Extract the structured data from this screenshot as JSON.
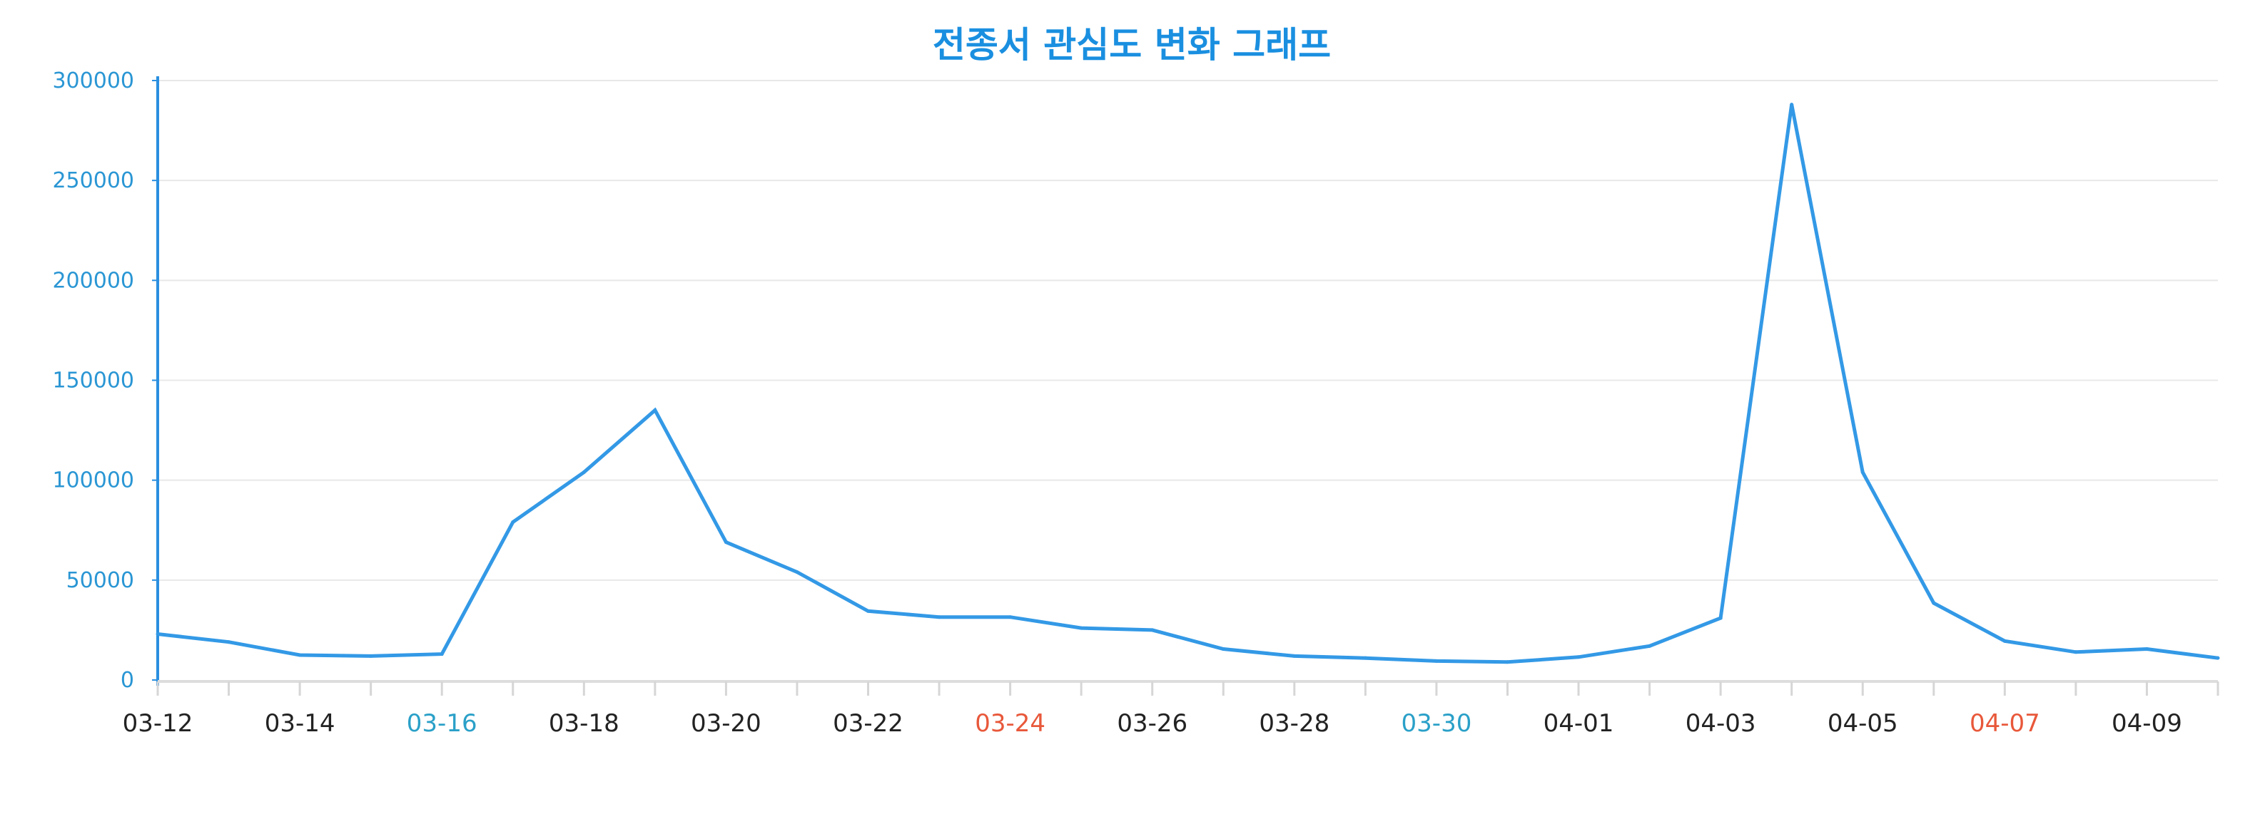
{
  "chart_data": {
    "type": "line",
    "title": "전종서 관심도 변화 그래프",
    "xlabel": "",
    "ylabel": "",
    "ylim": [
      0,
      300000
    ],
    "yticks": [
      "0",
      "50000",
      "100000",
      "150000",
      "200000",
      "250000",
      "300000"
    ],
    "x": [
      "03-12",
      "03-13",
      "03-14",
      "03-15",
      "03-16",
      "03-17",
      "03-18",
      "03-19",
      "03-20",
      "03-21",
      "03-22",
      "03-23",
      "03-24",
      "03-25",
      "03-26",
      "03-27",
      "03-28",
      "03-29",
      "03-30",
      "03-31",
      "04-01",
      "04-02",
      "04-03",
      "04-04",
      "04-05",
      "04-06",
      "04-07",
      "04-08",
      "04-09",
      "04-10"
    ],
    "xtick_labels": [
      "03-12",
      "03-14",
      "03-16",
      "03-18",
      "03-20",
      "03-22",
      "03-24",
      "03-26",
      "03-28",
      "03-30",
      "04-01",
      "04-03",
      "04-05",
      "04-07",
      "04-09"
    ],
    "series": [
      {
        "values": [
          23000,
          19000,
          12500,
          12000,
          13000,
          79000,
          104000,
          135000,
          69000,
          54000,
          34500,
          31500,
          31500,
          26000,
          25000,
          15500,
          12000,
          11000,
          9500,
          9000,
          11500,
          17000,
          31000,
          288000,
          104000,
          38500,
          19500,
          14000,
          15500,
          11000
        ]
      }
    ],
    "grid": true,
    "colors": {
      "line": "#3399e6",
      "title": "#1a8fe0",
      "axis_text": "#2a96d4",
      "tick_default": "#222222",
      "tick_saturday": "#2aa0c8",
      "tick_sunday": "#e8583a",
      "grid": "#e8e8e8",
      "axis": "#2a8fe0"
    },
    "tick_colors": {
      "03-16": "#2aa0c8",
      "03-30": "#2aa0c8",
      "03-24": "#e8583a",
      "04-07": "#e8583a"
    }
  }
}
